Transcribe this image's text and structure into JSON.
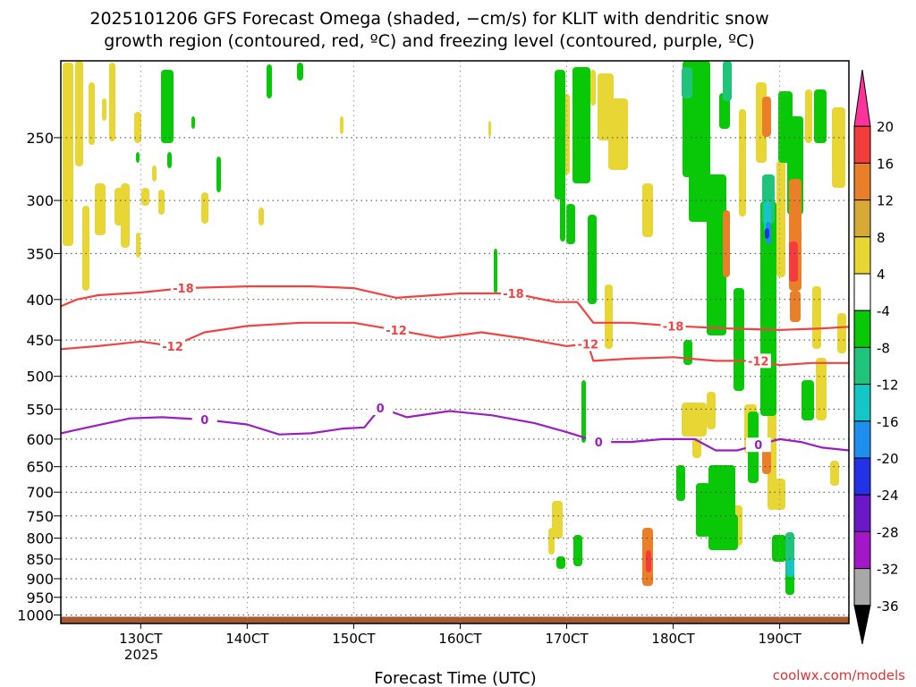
{
  "chart_data": {
    "type": "heatmap",
    "title_line1": "2025101206 GFS Forecast Omega (shaded, −cm/s) for KLIT with dendritic snow",
    "title_line2": "growth region (contoured, red, ºC) and freezing level (contoured, purple, ºC)",
    "xlabel": "Forecast Time (UTC)",
    "x_ticks": [
      "130CT",
      "140CT",
      "150CT",
      "160CT",
      "170CT",
      "180CT",
      "190CT"
    ],
    "x_year_label": "2025",
    "x_range_days": [
      12.25,
      19.65
    ],
    "y_ticks": [
      250,
      300,
      350,
      400,
      450,
      500,
      550,
      600,
      650,
      700,
      750,
      800,
      850,
      900,
      950,
      1000
    ],
    "y_range_hpa": [
      200,
      1025
    ],
    "y_scale": "log",
    "colorbar": {
      "labels": [
        20,
        16,
        12,
        8,
        4,
        -4,
        -8,
        -12,
        -16,
        -20,
        -24,
        -28,
        -32,
        -36
      ],
      "colors": [
        "#ff3399",
        "#f33d3d",
        "#ea7f2a",
        "#d7a936",
        "#e7d633",
        "#ffffff",
        "#08c808",
        "#1fc47a",
        "#16c6c6",
        "#1f8fee",
        "#2233e6",
        "#6a18c6",
        "#a218c6",
        "#a8a8a8",
        "#000000"
      ]
    },
    "contours": [
      {
        "name": "-18",
        "color": "#ee4444",
        "labels": [
          "-18",
          "-18",
          "-18"
        ],
        "x": [
          12.25,
          12.4,
          12.6,
          13.0,
          13.4,
          14.0,
          14.6,
          15.0,
          15.4,
          16.0,
          16.5,
          16.9,
          17.1,
          17.25,
          17.6,
          18.0,
          18.5,
          19.0,
          19.4,
          19.65
        ],
        "p": [
          408,
          400,
          395,
          392,
          387,
          385,
          385,
          387,
          398,
          393,
          393,
          403,
          403,
          428,
          428,
          432,
          435,
          437,
          435,
          433
        ]
      },
      {
        "name": "-12",
        "color": "#ee4444",
        "labels": [
          "-12",
          "-12",
          "-12",
          "-12"
        ],
        "x": [
          12.25,
          12.6,
          13.0,
          13.3,
          13.6,
          14.0,
          14.5,
          15.0,
          15.4,
          15.8,
          16.2,
          16.6,
          17.0,
          17.2,
          17.25,
          17.6,
          18.0,
          18.4,
          18.8,
          19.0,
          19.3,
          19.65
        ],
        "p": [
          462,
          458,
          452,
          458,
          440,
          432,
          428,
          428,
          437,
          447,
          440,
          448,
          458,
          455,
          478,
          475,
          473,
          478,
          478,
          484,
          481,
          481
        ]
      },
      {
        "name": "0",
        "color": "#9a1ec4",
        "labels": [
          "0",
          "0",
          "0",
          "0"
        ],
        "x": [
          12.25,
          12.5,
          12.9,
          13.2,
          13.6,
          14.0,
          14.3,
          14.6,
          14.9,
          15.1,
          15.25,
          15.5,
          15.9,
          16.3,
          16.7,
          17.0,
          17.3,
          17.6,
          17.9,
          18.2,
          18.4,
          18.6,
          18.8,
          19.0,
          19.2,
          19.4,
          19.65
        ],
        "p": [
          590,
          580,
          565,
          563,
          567,
          575,
          592,
          590,
          582,
          580,
          548,
          563,
          553,
          560,
          573,
          588,
          605,
          605,
          600,
          600,
          620,
          620,
          610,
          600,
          605,
          615,
          620
        ]
      }
    ],
    "terrain_color": "#a55a32"
  },
  "footer": {
    "credit": "coolwx.com/models"
  }
}
